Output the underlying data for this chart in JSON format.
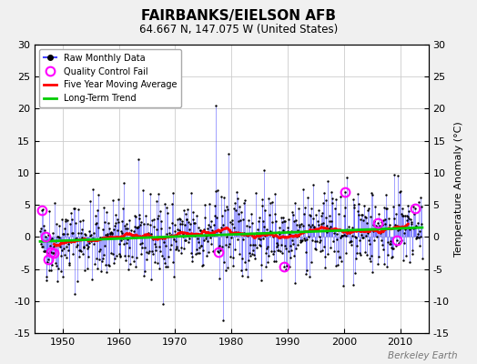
{
  "title": "FAIRBANKS/EIELSON AFB",
  "subtitle": "64.667 N, 147.075 W (United States)",
  "ylabel_right": "Temperature Anomaly (°C)",
  "watermark": "Berkeley Earth",
  "xlim": [
    1945,
    2015
  ],
  "ylim": [
    -15,
    30
  ],
  "yticks": [
    -15,
    -10,
    -5,
    0,
    5,
    10,
    15,
    20,
    25,
    30
  ],
  "xticks": [
    1950,
    1960,
    1970,
    1980,
    1990,
    2000,
    2010
  ],
  "bg_color": "#f0f0f0",
  "plot_bg_color": "#ffffff",
  "raw_line_color": "#4444ff",
  "raw_fill_color": "#aaaaff",
  "raw_marker_color": "#000000",
  "qc_fail_color": "#ff00ff",
  "moving_avg_color": "#ff0000",
  "trend_color": "#00cc00",
  "seed": 42,
  "n_months": 816,
  "start_year": 1946,
  "trend_slope": 0.032,
  "trend_intercept": -0.7
}
